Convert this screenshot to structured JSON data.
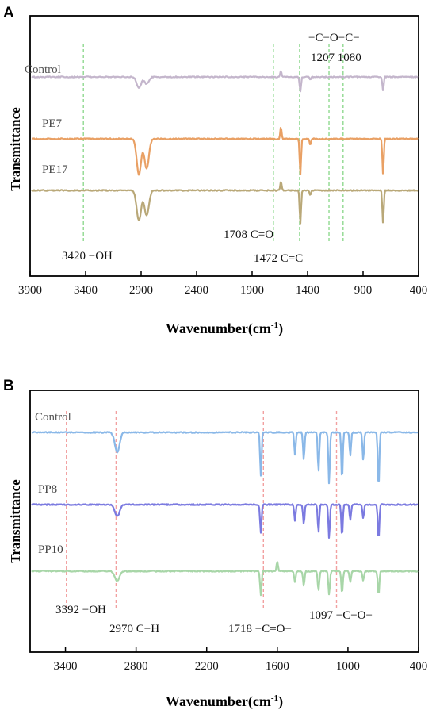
{
  "chart_data": [
    {
      "panel": "A",
      "type": "line",
      "ylabel": "Transmittance",
      "xlabel": "Wavenumber(cm",
      "xlabel_sup": "-1",
      "xlabel_tail": ")",
      "xlim": [
        3900,
        400
      ],
      "xticks": [
        3900,
        3400,
        2900,
        2400,
        1900,
        1400,
        900,
        400
      ],
      "grid": false,
      "series": [
        {
          "name": "Control",
          "color": "#c4b6cc",
          "dips": [
            {
              "x": 2920,
              "d": 14
            },
            {
              "x": 2850,
              "d": 9
            },
            {
              "x": 1640,
              "d": -8
            },
            {
              "x": 1465,
              "d": 18
            },
            {
              "x": 1375,
              "d": 4
            },
            {
              "x": 720,
              "d": 17
            }
          ]
        },
        {
          "name": "PE7",
          "color": "#e9a064",
          "dips": [
            {
              "x": 2920,
              "d": 45
            },
            {
              "x": 2850,
              "d": 38
            },
            {
              "x": 1640,
              "d": -15
            },
            {
              "x": 1465,
              "d": 45
            },
            {
              "x": 1375,
              "d": 8
            },
            {
              "x": 720,
              "d": 45
            }
          ]
        },
        {
          "name": "PE17",
          "color": "#b9a878",
          "dips": [
            {
              "x": 2920,
              "d": 38
            },
            {
              "x": 2850,
              "d": 32
            },
            {
              "x": 1640,
              "d": -12
            },
            {
              "x": 1465,
              "d": 42
            },
            {
              "x": 1375,
              "d": 6
            },
            {
              "x": 720,
              "d": 42
            }
          ]
        }
      ],
      "reference_lines": [
        {
          "x": 3420,
          "color": "#8fd98f"
        },
        {
          "x": 1708,
          "color": "#8fd98f"
        },
        {
          "x": 1472,
          "color": "#8fd98f"
        },
        {
          "x": 1207,
          "color": "#8fd98f"
        },
        {
          "x": 1080,
          "color": "#8fd98f"
        }
      ],
      "annotations": {
        "oh": "3420 −OH",
        "co": "1708 C=O",
        "cc": "1472 C=C",
        "coc_top": "−C−O−C−",
        "coc_nums": "1207 1080"
      }
    },
    {
      "panel": "B",
      "type": "line",
      "ylabel": "Transmittance",
      "xlabel": "Wavenumber(cm",
      "xlabel_sup": "-1",
      "xlabel_tail": ")",
      "xlim": [
        3700,
        400
      ],
      "xticks": [
        3400,
        2800,
        2200,
        1600,
        1000,
        400
      ],
      "grid": false,
      "series": [
        {
          "name": "Control",
          "color": "#8ab8e8",
          "dips": [
            {
              "x": 2960,
              "d": 25
            },
            {
              "x": 1740,
              "d": 55
            },
            {
              "x": 1450,
              "d": 28
            },
            {
              "x": 1375,
              "d": 35
            },
            {
              "x": 1250,
              "d": 50
            },
            {
              "x": 1160,
              "d": 65
            },
            {
              "x": 1050,
              "d": 60
            },
            {
              "x": 980,
              "d": 30
            },
            {
              "x": 870,
              "d": 35
            },
            {
              "x": 740,
              "d": 70
            }
          ]
        },
        {
          "name": "PP8",
          "color": "#7b7ae0",
          "dips": [
            {
              "x": 2960,
              "d": 15
            },
            {
              "x": 1740,
              "d": 35
            },
            {
              "x": 1450,
              "d": 20
            },
            {
              "x": 1375,
              "d": 25
            },
            {
              "x": 1250,
              "d": 35
            },
            {
              "x": 1160,
              "d": 42
            },
            {
              "x": 1050,
              "d": 40
            },
            {
              "x": 980,
              "d": 20
            },
            {
              "x": 870,
              "d": 18
            },
            {
              "x": 740,
              "d": 45
            }
          ]
        },
        {
          "name": "PP10",
          "color": "#a8d6a8",
          "dips": [
            {
              "x": 2960,
              "d": 12
            },
            {
              "x": 1740,
              "d": 30
            },
            {
              "x": 1600,
              "d": -12
            },
            {
              "x": 1450,
              "d": 14
            },
            {
              "x": 1375,
              "d": 18
            },
            {
              "x": 1250,
              "d": 25
            },
            {
              "x": 1160,
              "d": 30
            },
            {
              "x": 1050,
              "d": 28
            },
            {
              "x": 980,
              "d": 14
            },
            {
              "x": 870,
              "d": 12
            },
            {
              "x": 740,
              "d": 30
            }
          ]
        }
      ],
      "reference_lines": [
        {
          "x": 3392,
          "color": "#f2a0a0"
        },
        {
          "x": 2970,
          "color": "#f2a0a0"
        },
        {
          "x": 1718,
          "color": "#f2a0a0"
        },
        {
          "x": 1097,
          "color": "#f2a0a0"
        }
      ],
      "annotations": {
        "oh": "3392 −OH",
        "ch": "2970 C−H",
        "coo": "1718 −C=O−",
        "co": "1097 −C−O−"
      }
    }
  ]
}
